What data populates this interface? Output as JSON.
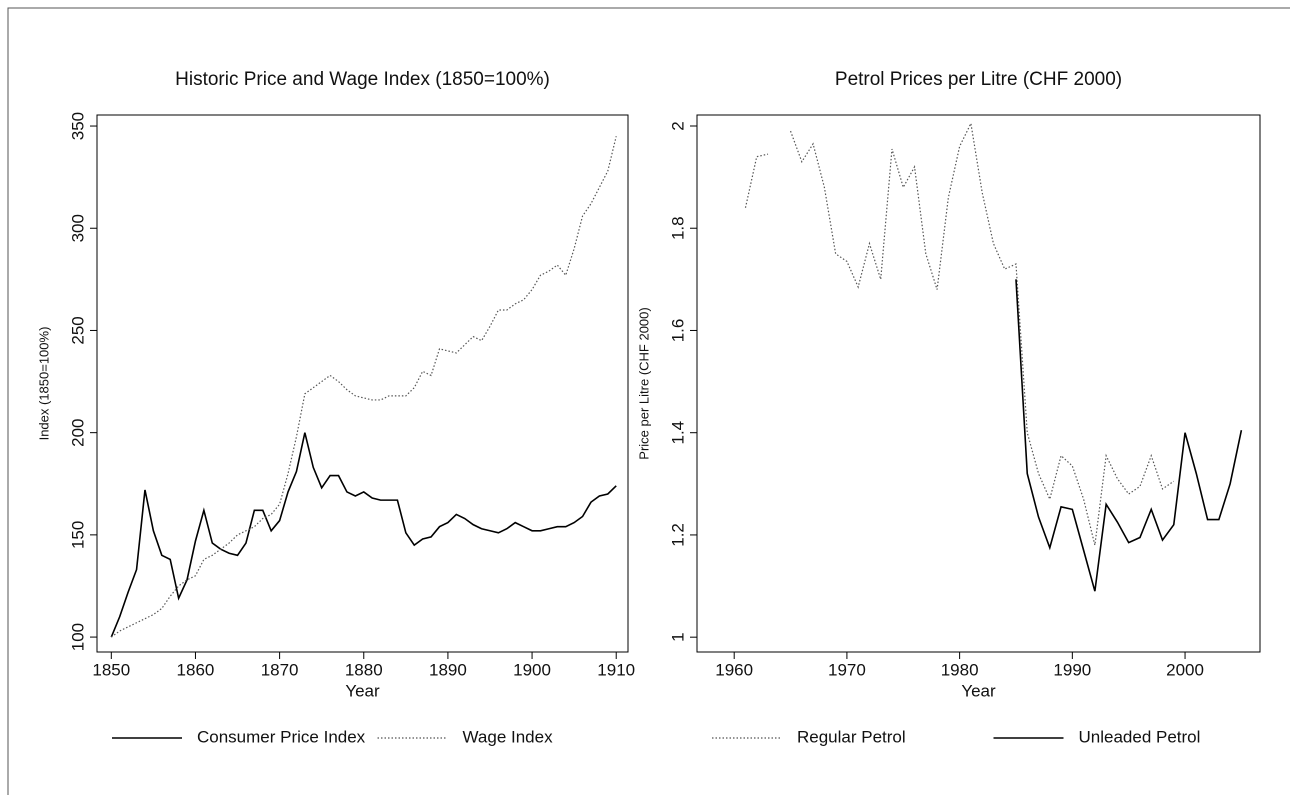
{
  "chart_data": [
    {
      "type": "line",
      "title": "Historic Price and Wage Index (1850=100%)",
      "x_label": "Year",
      "y_label": "Index (1850=100%)",
      "x": [
        1850,
        1851,
        1852,
        1853,
        1854,
        1855,
        1856,
        1857,
        1858,
        1859,
        1860,
        1861,
        1862,
        1863,
        1864,
        1865,
        1866,
        1867,
        1868,
        1869,
        1870,
        1871,
        1872,
        1873,
        1874,
        1875,
        1876,
        1877,
        1878,
        1879,
        1880,
        1881,
        1882,
        1883,
        1884,
        1885,
        1886,
        1887,
        1888,
        1889,
        1890,
        1891,
        1892,
        1893,
        1894,
        1895,
        1896,
        1897,
        1898,
        1899,
        1900,
        1901,
        1902,
        1903,
        1904,
        1905,
        1906,
        1907,
        1908,
        1909,
        1910
      ],
      "series": [
        {
          "name": "Consumer Price Index",
          "color": "#000000",
          "dash": "solid",
          "values": [
            100,
            110,
            122,
            133,
            172,
            152,
            140,
            138,
            119,
            128,
            147,
            162,
            146,
            143,
            141,
            140,
            146,
            162,
            162,
            152,
            157,
            171,
            181,
            200,
            183,
            173,
            179,
            179,
            171,
            169,
            171,
            168,
            167,
            167,
            167,
            151,
            145,
            148,
            149,
            154,
            156,
            160,
            158,
            155,
            153,
            152,
            151,
            153,
            156,
            154,
            152,
            152,
            153,
            154,
            154,
            156,
            159,
            166,
            169,
            170,
            174
          ]
        },
        {
          "name": "Wage Index",
          "color": "#555555",
          "dash": "dotted",
          "values": [
            100,
            103,
            105,
            107,
            109,
            111,
            114,
            120,
            125,
            128,
            130,
            138,
            140,
            143,
            146,
            150,
            152,
            154,
            158,
            160,
            165,
            180,
            198,
            219,
            222,
            225,
            228,
            225,
            221,
            218,
            217,
            216,
            216,
            218,
            218,
            218,
            222,
            230,
            228,
            241,
            240,
            239,
            243,
            247,
            245,
            252,
            260,
            260,
            263,
            265,
            270,
            277,
            279,
            282,
            277,
            290,
            306,
            312,
            320,
            328,
            345
          ]
        }
      ],
      "xlim": [
        1848.3,
        1911.4
      ],
      "xticks": [
        1850,
        1860,
        1870,
        1880,
        1890,
        1900,
        1910
      ],
      "ylim": [
        92.7,
        355.4
      ],
      "yticks": [
        100,
        150,
        200,
        250,
        300,
        350
      ]
    },
    {
      "type": "line",
      "title": "Petrol Prices per Litre (CHF 2000)",
      "x_label": "Year",
      "y_label": "Price per Litre (CHF 2000)",
      "x": [
        1961,
        1962,
        1963,
        1964,
        1965,
        1966,
        1967,
        1968,
        1969,
        1970,
        1971,
        1972,
        1973,
        1974,
        1975,
        1976,
        1977,
        1978,
        1979,
        1980,
        1981,
        1982,
        1983,
        1984,
        1985,
        1986,
        1987,
        1988,
        1989,
        1990,
        1991,
        1992,
        1993,
        1994,
        1995,
        1996,
        1997,
        1998,
        1999,
        2000,
        2001,
        2002,
        2003,
        2004,
        2005
      ],
      "series": [
        {
          "name": "Regular Petrol",
          "color": "#555555",
          "dash": "dotted",
          "values": [
            1.84,
            1.94,
            1.945,
            null,
            1.99,
            1.93,
            1.965,
            1.88,
            1.75,
            1.735,
            1.685,
            1.77,
            1.7,
            1.955,
            1.88,
            1.92,
            1.75,
            1.68,
            1.86,
            1.96,
            2.005,
            1.87,
            1.77,
            1.72,
            1.73,
            1.4,
            1.32,
            1.27,
            1.355,
            1.335,
            1.27,
            1.18,
            1.355,
            1.31,
            1.28,
            1.295,
            1.355,
            1.29,
            1.305,
            null,
            null,
            null,
            null,
            null,
            null
          ]
        },
        {
          "name": "Unleaded Petrol",
          "color": "#000000",
          "dash": "solid",
          "values": [
            null,
            null,
            null,
            null,
            null,
            null,
            null,
            null,
            null,
            null,
            null,
            null,
            null,
            null,
            null,
            null,
            null,
            null,
            null,
            null,
            null,
            null,
            null,
            null,
            1.7,
            1.32,
            1.235,
            1.175,
            1.255,
            1.25,
            1.17,
            1.09,
            1.26,
            1.225,
            1.185,
            1.195,
            1.25,
            1.19,
            1.22,
            1.4,
            1.32,
            1.23,
            1.23,
            1.3,
            1.405
          ]
        }
      ],
      "xlim": [
        1956.7,
        2006.65
      ],
      "xticks": [
        1960,
        1970,
        1980,
        1990,
        2000
      ],
      "ylim": [
        0.971,
        2.0215
      ],
      "yticks": [
        1,
        1.2,
        1.4,
        1.6,
        1.8,
        2
      ]
    }
  ]
}
